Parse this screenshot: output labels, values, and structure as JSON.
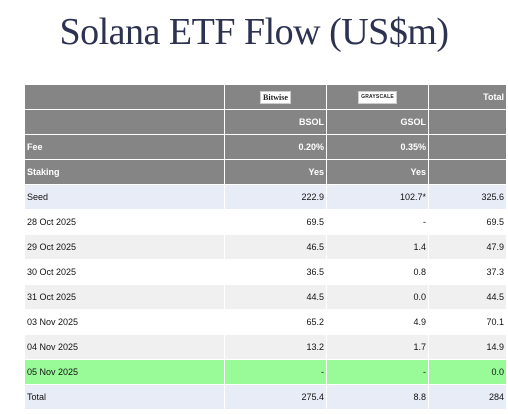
{
  "title": "Solana ETF Flow (US$m)",
  "table": {
    "logo_row": {
      "bitwise": "Bitwise",
      "grayscale": "GRAYSCALE",
      "total": "Total"
    },
    "ticker_row": {
      "col1": "BSOL",
      "col2": "GSOL"
    },
    "fee_row": {
      "label": "Fee",
      "col1": "0.20%",
      "col2": "0.35%"
    },
    "staking_row": {
      "label": "Staking",
      "col1": "Yes",
      "col2": "Yes"
    },
    "rows": [
      {
        "date": "Seed",
        "bsol": "222.9",
        "gsol": "102.7*",
        "total": "325.6"
      },
      {
        "date": "28 Oct 2025",
        "bsol": "69.5",
        "gsol": "-",
        "total": "69.5"
      },
      {
        "date": "29 Oct 2025",
        "bsol": "46.5",
        "gsol": "1.4",
        "total": "47.9"
      },
      {
        "date": "30 Oct 2025",
        "bsol": "36.5",
        "gsol": "0.8",
        "total": "37.3"
      },
      {
        "date": "31 Oct 2025",
        "bsol": "44.5",
        "gsol": "0.0",
        "total": "44.5"
      },
      {
        "date": "03 Nov 2025",
        "bsol": "65.2",
        "gsol": "4.9",
        "total": "70.1"
      },
      {
        "date": "04 Nov 2025",
        "bsol": "13.2",
        "gsol": "1.7",
        "total": "14.9"
      },
      {
        "date": "05 Nov 2025",
        "bsol": "-",
        "gsol": "-",
        "total": "0.0"
      },
      {
        "date": "Total",
        "bsol": "275.4",
        "gsol": "8.8",
        "total": "284"
      }
    ]
  },
  "colors": {
    "header_bg": "#858585",
    "seed_total_bg": "#e8ecf6",
    "highlight_bg": "#98fb98",
    "title_color": "#2d3250"
  }
}
